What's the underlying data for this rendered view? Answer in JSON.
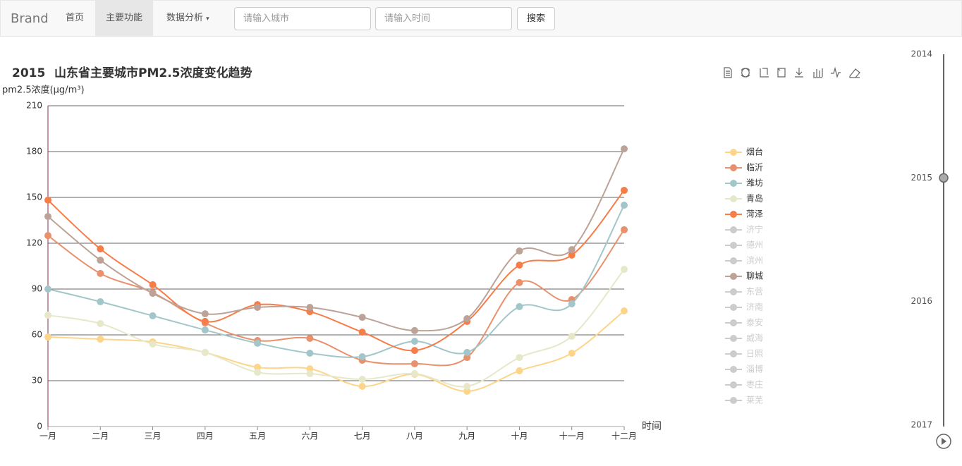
{
  "nav": {
    "brand": "Brand",
    "items": [
      "首页",
      "主要功能",
      "数据分析"
    ],
    "active": 1,
    "city_placeholder": "请输入城市",
    "time_placeholder": "请输入时间",
    "search_button": "搜索"
  },
  "chart_data": {
    "type": "line",
    "year": "2015",
    "title": "山东省主要城市PM2.5浓度变化趋势",
    "y_axis_label": "pm2.5浓度(μg/m³)",
    "x_axis_label": "时间",
    "categories": [
      "一月",
      "二月",
      "三月",
      "四月",
      "五月",
      "六月",
      "七月",
      "八月",
      "九月",
      "十月",
      "十一月",
      "十二月"
    ],
    "ylim": [
      0,
      210
    ],
    "yticks": [
      0,
      30,
      60,
      90,
      120,
      150,
      180,
      210
    ],
    "grid": true,
    "smooth": true,
    "legend_position": "right",
    "inactive_color": "#cccccc",
    "series": [
      {
        "name": "烟台",
        "color": "#fdd58a",
        "values": [
          58.6,
          57.2,
          55.4,
          48.5,
          38.8,
          37.8,
          26.3,
          34.2,
          23.1,
          36.5,
          48,
          75.7
        ]
      },
      {
        "name": "临沂",
        "color": "#e8916c",
        "values": [
          125,
          100.2,
          87.7,
          67.8,
          56.3,
          57.7,
          43.4,
          41.1,
          45.2,
          94.2,
          83.1,
          128.8
        ]
      },
      {
        "name": "潍坊",
        "color": "#a2c6ca",
        "values": [
          90,
          81.7,
          72.5,
          63.2,
          54.5,
          48,
          45.7,
          55.8,
          48.5,
          78.5,
          80.3,
          144.9
        ]
      },
      {
        "name": "青岛",
        "color": "#e6e8c9",
        "values": [
          72.9,
          67.4,
          54,
          48.5,
          35.5,
          34.6,
          30.9,
          34.6,
          26.3,
          45.2,
          59.1,
          102.9
        ]
      },
      {
        "name": "菏泽",
        "color": "#f67c48",
        "values": [
          148.2,
          116.3,
          92.8,
          68.8,
          79.8,
          75.2,
          61.8,
          49.8,
          68.8,
          105.7,
          112.2,
          154.6
        ]
      },
      {
        "name": "济宁",
        "selected": false
      },
      {
        "name": "德州",
        "selected": false
      },
      {
        "name": "滨州",
        "selected": false
      },
      {
        "name": "聊城",
        "color": "#bca297",
        "values": [
          137.5,
          108.9,
          87.2,
          73.8,
          78,
          78,
          71.5,
          62.8,
          70.6,
          114.9,
          115.8,
          181.8
        ]
      },
      {
        "name": "东营",
        "selected": false
      },
      {
        "name": "济南",
        "selected": false
      },
      {
        "name": "泰安",
        "selected": false
      },
      {
        "name": "威海",
        "selected": false
      },
      {
        "name": "日照",
        "selected": false
      },
      {
        "name": "淄博",
        "selected": false
      },
      {
        "name": "枣庄",
        "selected": false
      },
      {
        "name": "莱芜",
        "selected": false
      }
    ],
    "timeline": {
      "years": [
        "2014",
        "2015",
        "2016",
        "2017"
      ],
      "current": 1
    }
  }
}
